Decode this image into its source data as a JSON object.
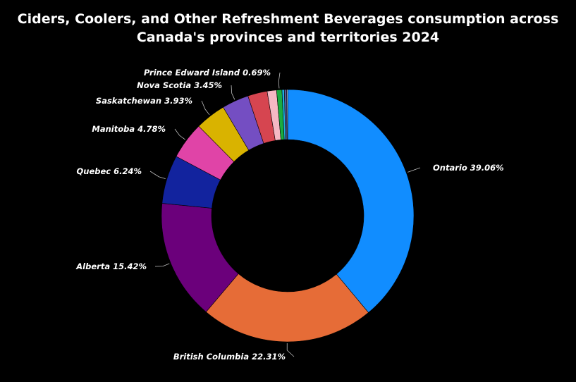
{
  "chart_data": {
    "type": "pie",
    "donut": true,
    "title_lines": [
      "Ciders, Coolers, and Other Refreshment Beverages consumption across",
      "Canada's provinces and territories 2024"
    ],
    "slices": [
      {
        "name": "Ontario",
        "value": 39.06,
        "label": "Ontario 39.06%",
        "color": "#118dff"
      },
      {
        "name": "British Columbia",
        "value": 22.31,
        "label": "British Columbia 22.31%",
        "color": "#e66c37"
      },
      {
        "name": "Alberta",
        "value": 15.42,
        "label": "Alberta 15.42%",
        "color": "#6b007b"
      },
      {
        "name": "Quebec",
        "value": 6.24,
        "label": "Quebec 6.24%",
        "color": "#12239e"
      },
      {
        "name": "Manitoba",
        "value": 4.78,
        "label": "Manitoba 4.78%",
        "color": "#e044a7"
      },
      {
        "name": "Saskatchewan",
        "value": 3.93,
        "label": "Saskatchewan 3.93%",
        "color": "#d9b300"
      },
      {
        "name": "Nova Scotia",
        "value": 3.45,
        "label": "Nova Scotia 3.45%",
        "color": "#744ec2"
      },
      {
        "name": "",
        "value": 2.5,
        "label": "",
        "color": "#d64550"
      },
      {
        "name": "",
        "value": 1.2,
        "label": "",
        "color": "#f5b8c4"
      },
      {
        "name": "Prince Edward Island",
        "value": 0.69,
        "label": "Prince Edward Island 0.69%",
        "color": "#1aab40"
      },
      {
        "name": "",
        "value": 0.3,
        "label": "",
        "color": "#1fb3e0"
      },
      {
        "name": "",
        "value": 0.3,
        "label": "",
        "color": "#5c5c99"
      },
      {
        "name": "",
        "value": 0.12,
        "label": "",
        "color": "#e0e0e0"
      }
    ],
    "legend": "none",
    "data_labels": "outside"
  }
}
